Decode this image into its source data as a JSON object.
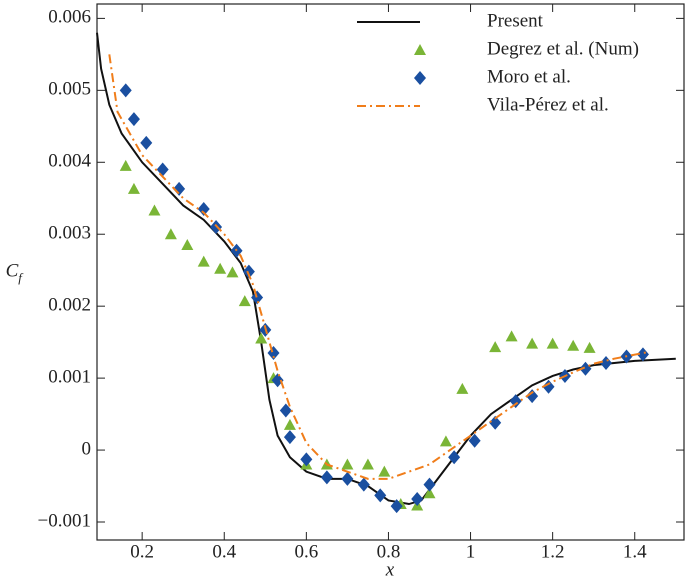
{
  "chart_data": {
    "type": "line",
    "xlabel": "x",
    "ylabel": "C",
    "ylabel_sub": "f",
    "xlim": [
      0.09,
      1.52
    ],
    "ylim": [
      -0.00125,
      0.0062
    ],
    "xticks": [
      0.2,
      0.4,
      0.6,
      0.8,
      1.0,
      1.2,
      1.4
    ],
    "yticks": [
      {
        "value": -0.001,
        "label": "−0.001"
      },
      0,
      0.001,
      0.002,
      0.003,
      0.004,
      0.005,
      0.006
    ],
    "legend": "upper right",
    "series": [
      {
        "name": "Present",
        "color": "#111111",
        "style": "solid",
        "x": [
          0.09,
          0.1,
          0.12,
          0.15,
          0.2,
          0.25,
          0.3,
          0.35,
          0.4,
          0.44,
          0.47,
          0.49,
          0.51,
          0.53,
          0.56,
          0.6,
          0.65,
          0.7,
          0.75,
          0.8,
          0.85,
          0.88,
          0.92,
          0.96,
          1.0,
          1.05,
          1.1,
          1.15,
          1.2,
          1.25,
          1.3,
          1.4,
          1.5
        ],
        "values": [
          0.0058,
          0.0053,
          0.0048,
          0.0044,
          0.004,
          0.0037,
          0.0034,
          0.0032,
          0.0029,
          0.0026,
          0.0022,
          0.0015,
          0.0007,
          0.0002,
          -0.0001,
          -0.0003,
          -0.0004,
          -0.0004,
          -0.0005,
          -0.0007,
          -0.00075,
          -0.0007,
          -0.0004,
          -0.0001,
          0.0002,
          0.0005,
          0.0007,
          0.0009,
          0.00103,
          0.00112,
          0.00118,
          0.00124,
          0.00127
        ]
      },
      {
        "name": "Degrez et al. (Num)",
        "color": "#7ab536",
        "style": "triangle",
        "x": [
          0.16,
          0.18,
          0.23,
          0.27,
          0.31,
          0.35,
          0.39,
          0.42,
          0.45,
          0.49,
          0.52,
          0.56,
          0.6,
          0.65,
          0.7,
          0.75,
          0.79,
          0.83,
          0.87,
          0.9,
          0.94,
          0.98,
          1.06,
          1.1,
          1.15,
          1.2,
          1.25,
          1.29
        ],
        "values": [
          0.00395,
          0.00363,
          0.00333,
          0.003,
          0.00285,
          0.00262,
          0.00252,
          0.00247,
          0.00207,
          0.00155,
          0.001,
          0.00035,
          -0.0002,
          -0.0002,
          -0.0002,
          -0.0002,
          -0.0003,
          -0.00075,
          -0.00077,
          -0.0006,
          0.00012,
          0.00085,
          0.00143,
          0.00158,
          0.00148,
          0.00148,
          0.00145,
          0.00142
        ]
      },
      {
        "name": "Moro et al.",
        "color": "#1a4fa0",
        "style": "diamond",
        "x": [
          0.16,
          0.18,
          0.21,
          0.25,
          0.29,
          0.35,
          0.38,
          0.43,
          0.46,
          0.48,
          0.5,
          0.52,
          0.53,
          0.55,
          0.56,
          0.6,
          0.65,
          0.7,
          0.74,
          0.78,
          0.82,
          0.87,
          0.9,
          0.96,
          1.01,
          1.06,
          1.11,
          1.15,
          1.19,
          1.23,
          1.28,
          1.33,
          1.38,
          1.42
        ],
        "values": [
          0.005,
          0.0046,
          0.00427,
          0.0039,
          0.00363,
          0.00335,
          0.0031,
          0.00277,
          0.00248,
          0.00212,
          0.00167,
          0.00135,
          0.00097,
          0.00055,
          0.00018,
          -0.00013,
          -0.00038,
          -0.0004,
          -0.00048,
          -0.00063,
          -0.00078,
          -0.00068,
          -0.00048,
          -0.0001,
          0.00013,
          0.00038,
          0.00068,
          0.00075,
          0.00088,
          0.00103,
          0.00113,
          0.00121,
          0.0013,
          0.00133
        ]
      },
      {
        "name": "Vila-Pérez et al.",
        "color": "#f07d1a",
        "style": "dashdot",
        "x": [
          0.12,
          0.14,
          0.2,
          0.25,
          0.3,
          0.35,
          0.4,
          0.44,
          0.47,
          0.5,
          0.53,
          0.56,
          0.6,
          0.65,
          0.7,
          0.75,
          0.8,
          0.85,
          0.9,
          0.95,
          1.0,
          1.05,
          1.1,
          1.15,
          1.2,
          1.25,
          1.3,
          1.35,
          1.43
        ],
        "values": [
          0.0055,
          0.0047,
          0.0041,
          0.0038,
          0.0035,
          0.0033,
          0.003,
          0.0027,
          0.0023,
          0.0017,
          0.0011,
          0.0006,
          0.0001,
          -0.0002,
          -0.0003,
          -0.0004,
          -0.0004,
          -0.0003,
          -0.0002,
          0.0,
          0.0002,
          0.0004,
          0.0006,
          0.0008,
          0.00095,
          0.00108,
          0.0012,
          0.00127,
          0.00136
        ]
      }
    ]
  }
}
